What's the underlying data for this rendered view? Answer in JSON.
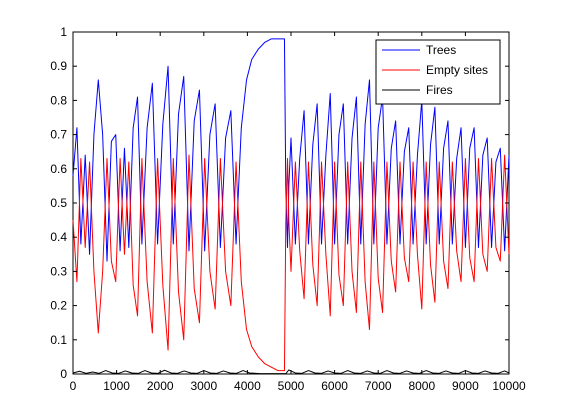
{
  "chart_data": {
    "type": "line",
    "xlim": [
      0,
      10000
    ],
    "ylim": [
      0,
      1
    ],
    "grid": false,
    "legend_position": "top-right",
    "x_ticks": [
      "0",
      "1000",
      "2000",
      "3000",
      "4000",
      "5000",
      "6000",
      "7000",
      "8000",
      "9000",
      "10000"
    ],
    "y_ticks": [
      "0",
      "0.1",
      "0.2",
      "0.3",
      "0.4",
      "0.5",
      "0.6",
      "0.7",
      "0.8",
      "0.9",
      "1"
    ],
    "series": [
      {
        "name": "Trees",
        "color": "#0000ff",
        "x": [
          0,
          90,
          180,
          280,
          380,
          480,
          580,
          680,
          780,
          880,
          980,
          1080,
          1180,
          1280,
          1380,
          1480,
          1580,
          1700,
          1820,
          1940,
          2060,
          2180,
          2300,
          2420,
          2540,
          2660,
          2780,
          2900,
          3020,
          3140,
          3260,
          3380,
          3500,
          3620,
          3740,
          3860,
          3980,
          4100,
          4250,
          4400,
          4550,
          4700,
          4850,
          4880,
          4920,
          4950,
          5000,
          5100,
          5200,
          5300,
          5400,
          5500,
          5600,
          5700,
          5800,
          5900,
          6000,
          6100,
          6200,
          6300,
          6400,
          6500,
          6600,
          6700,
          6800,
          6900,
          7000,
          7100,
          7200,
          7300,
          7400,
          7500,
          7600,
          7700,
          7800,
          7900,
          8000,
          8100,
          8200,
          8300,
          8400,
          8500,
          8600,
          8700,
          8800,
          8900,
          9000,
          9100,
          9200,
          9300,
          9400,
          9500,
          9600,
          9700,
          9800,
          9900,
          10000
        ],
        "y": [
          0.58,
          0.72,
          0.38,
          0.64,
          0.35,
          0.7,
          0.86,
          0.7,
          0.33,
          0.68,
          0.7,
          0.36,
          0.66,
          0.37,
          0.72,
          0.81,
          0.38,
          0.72,
          0.85,
          0.38,
          0.73,
          0.9,
          0.38,
          0.76,
          0.87,
          0.36,
          0.74,
          0.83,
          0.36,
          0.7,
          0.79,
          0.37,
          0.69,
          0.77,
          0.38,
          0.72,
          0.86,
          0.92,
          0.95,
          0.97,
          0.98,
          0.98,
          0.98,
          0.55,
          0.37,
          0.55,
          0.69,
          0.38,
          0.63,
          0.77,
          0.38,
          0.67,
          0.79,
          0.38,
          0.64,
          0.82,
          0.38,
          0.7,
          0.79,
          0.38,
          0.69,
          0.81,
          0.38,
          0.73,
          0.86,
          0.38,
          0.72,
          0.81,
          0.38,
          0.66,
          0.74,
          0.38,
          0.65,
          0.72,
          0.38,
          0.64,
          0.8,
          0.38,
          0.67,
          0.78,
          0.38,
          0.66,
          0.74,
          0.38,
          0.63,
          0.72,
          0.37,
          0.66,
          0.72,
          0.37,
          0.64,
          0.69,
          0.37,
          0.62,
          0.66,
          0.36,
          0.64
        ]
      },
      {
        "name": "Empty sites",
        "color": "#ff0000",
        "x": [
          0,
          90,
          180,
          280,
          380,
          480,
          580,
          680,
          780,
          880,
          980,
          1080,
          1180,
          1280,
          1380,
          1480,
          1580,
          1700,
          1820,
          1940,
          2060,
          2180,
          2300,
          2420,
          2540,
          2660,
          2780,
          2900,
          3020,
          3140,
          3260,
          3380,
          3500,
          3620,
          3740,
          3860,
          3980,
          4100,
          4250,
          4400,
          4550,
          4700,
          4850,
          4880,
          4920,
          4950,
          5000,
          5100,
          5200,
          5300,
          5400,
          5500,
          5600,
          5700,
          5800,
          5900,
          6000,
          6100,
          6200,
          6300,
          6400,
          6500,
          6600,
          6700,
          6800,
          6900,
          7000,
          7100,
          7200,
          7300,
          7400,
          7500,
          7600,
          7700,
          7800,
          7900,
          8000,
          8100,
          8200,
          8300,
          8400,
          8500,
          8600,
          8700,
          8800,
          8900,
          9000,
          9100,
          9200,
          9300,
          9400,
          9500,
          9600,
          9700,
          9800,
          9900,
          10000
        ],
        "y": [
          0.45,
          0.27,
          0.63,
          0.37,
          0.62,
          0.3,
          0.12,
          0.3,
          0.63,
          0.33,
          0.27,
          0.63,
          0.35,
          0.62,
          0.26,
          0.17,
          0.63,
          0.27,
          0.12,
          0.63,
          0.26,
          0.07,
          0.63,
          0.24,
          0.1,
          0.64,
          0.25,
          0.15,
          0.63,
          0.3,
          0.19,
          0.63,
          0.3,
          0.2,
          0.62,
          0.27,
          0.13,
          0.08,
          0.05,
          0.03,
          0.02,
          0.01,
          0.01,
          0.44,
          0.63,
          0.45,
          0.3,
          0.62,
          0.36,
          0.22,
          0.62,
          0.32,
          0.2,
          0.62,
          0.35,
          0.17,
          0.62,
          0.29,
          0.2,
          0.62,
          0.3,
          0.18,
          0.62,
          0.27,
          0.13,
          0.62,
          0.28,
          0.18,
          0.62,
          0.33,
          0.24,
          0.62,
          0.34,
          0.27,
          0.62,
          0.35,
          0.19,
          0.62,
          0.32,
          0.21,
          0.62,
          0.33,
          0.25,
          0.62,
          0.36,
          0.27,
          0.63,
          0.34,
          0.27,
          0.63,
          0.35,
          0.3,
          0.63,
          0.37,
          0.33,
          0.64,
          0.35
        ]
      },
      {
        "name": "Fires",
        "color": "#000000",
        "x": [
          0,
          150,
          300,
          450,
          600,
          750,
          900,
          1050,
          1200,
          1350,
          1500,
          1650,
          1800,
          1950,
          2100,
          2250,
          2400,
          2550,
          2700,
          2850,
          3000,
          3150,
          3300,
          3450,
          3600,
          3750,
          3900,
          4050,
          4300,
          4600,
          4880,
          4950,
          5100,
          5250,
          5400,
          5550,
          5700,
          5850,
          6000,
          6150,
          6300,
          6450,
          6600,
          6750,
          6900,
          7050,
          7200,
          7350,
          7500,
          7650,
          7800,
          7950,
          8100,
          8250,
          8400,
          8550,
          8700,
          8850,
          9000,
          9150,
          9300,
          9450,
          9600,
          9750,
          9900,
          10000
        ],
        "y": [
          0.003,
          0.008,
          0.002,
          0.006,
          0.002,
          0.01,
          0.003,
          0.002,
          0.009,
          0.003,
          0.002,
          0.01,
          0.003,
          0.002,
          0.011,
          0.003,
          0.002,
          0.009,
          0.003,
          0.002,
          0.01,
          0.003,
          0.002,
          0.009,
          0.003,
          0.002,
          0.01,
          0.003,
          0.001,
          0.001,
          0.001,
          0.012,
          0.003,
          0.002,
          0.01,
          0.003,
          0.002,
          0.009,
          0.003,
          0.002,
          0.01,
          0.003,
          0.002,
          0.009,
          0.003,
          0.002,
          0.01,
          0.003,
          0.002,
          0.009,
          0.003,
          0.002,
          0.01,
          0.003,
          0.002,
          0.009,
          0.003,
          0.002,
          0.01,
          0.003,
          0.002,
          0.009,
          0.003,
          0.002,
          0.009,
          0.003
        ]
      }
    ]
  }
}
